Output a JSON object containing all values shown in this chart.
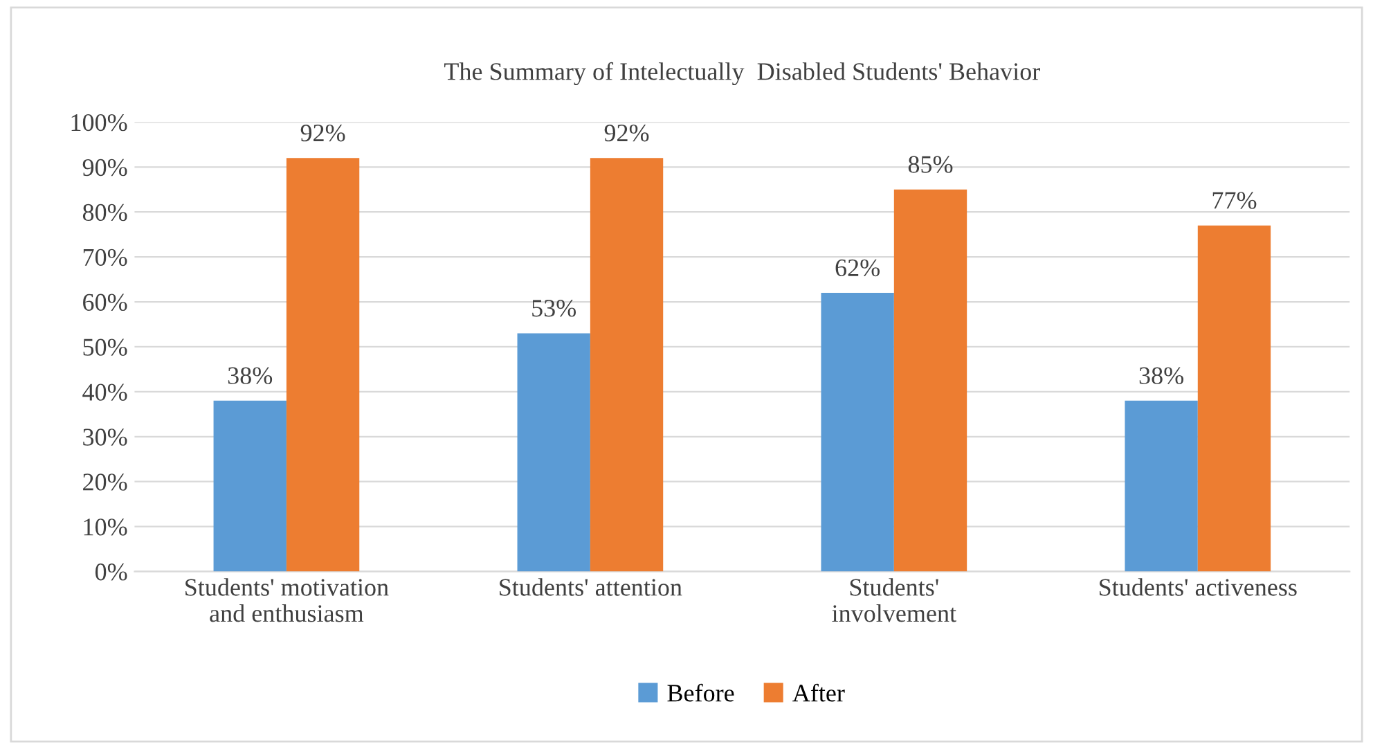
{
  "chart_data": {
    "type": "bar",
    "title": "The Summary of Intelectually  Disabled Students' Behavior",
    "categories": [
      "Students' motivation\nand enthusiasm",
      "Students' attention",
      "Students'\ninvolvement",
      "Students' activeness"
    ],
    "series": [
      {
        "name": "Before",
        "color": "#5b9bd5",
        "values": [
          38,
          53,
          62,
          38
        ],
        "value_labels": [
          "38%",
          "53%",
          "62%",
          "38%"
        ]
      },
      {
        "name": "After",
        "color": "#ed7d31",
        "values": [
          92,
          92,
          85,
          77
        ],
        "value_labels": [
          "92%",
          "92%",
          "85%",
          "77%"
        ]
      }
    ],
    "ylim": [
      0,
      100
    ],
    "yticks": [
      {
        "value": 0,
        "label": "0%"
      },
      {
        "value": 10,
        "label": "10%"
      },
      {
        "value": 20,
        "label": "20%"
      },
      {
        "value": 30,
        "label": "30%"
      },
      {
        "value": 40,
        "label": "40%"
      },
      {
        "value": 50,
        "label": "50%"
      },
      {
        "value": 60,
        "label": "60%"
      },
      {
        "value": 70,
        "label": "70%"
      },
      {
        "value": 80,
        "label": "80%"
      },
      {
        "value": 90,
        "label": "90%"
      },
      {
        "value": 100,
        "label": "100%"
      }
    ],
    "grid": "y",
    "legend": "bottom"
  }
}
